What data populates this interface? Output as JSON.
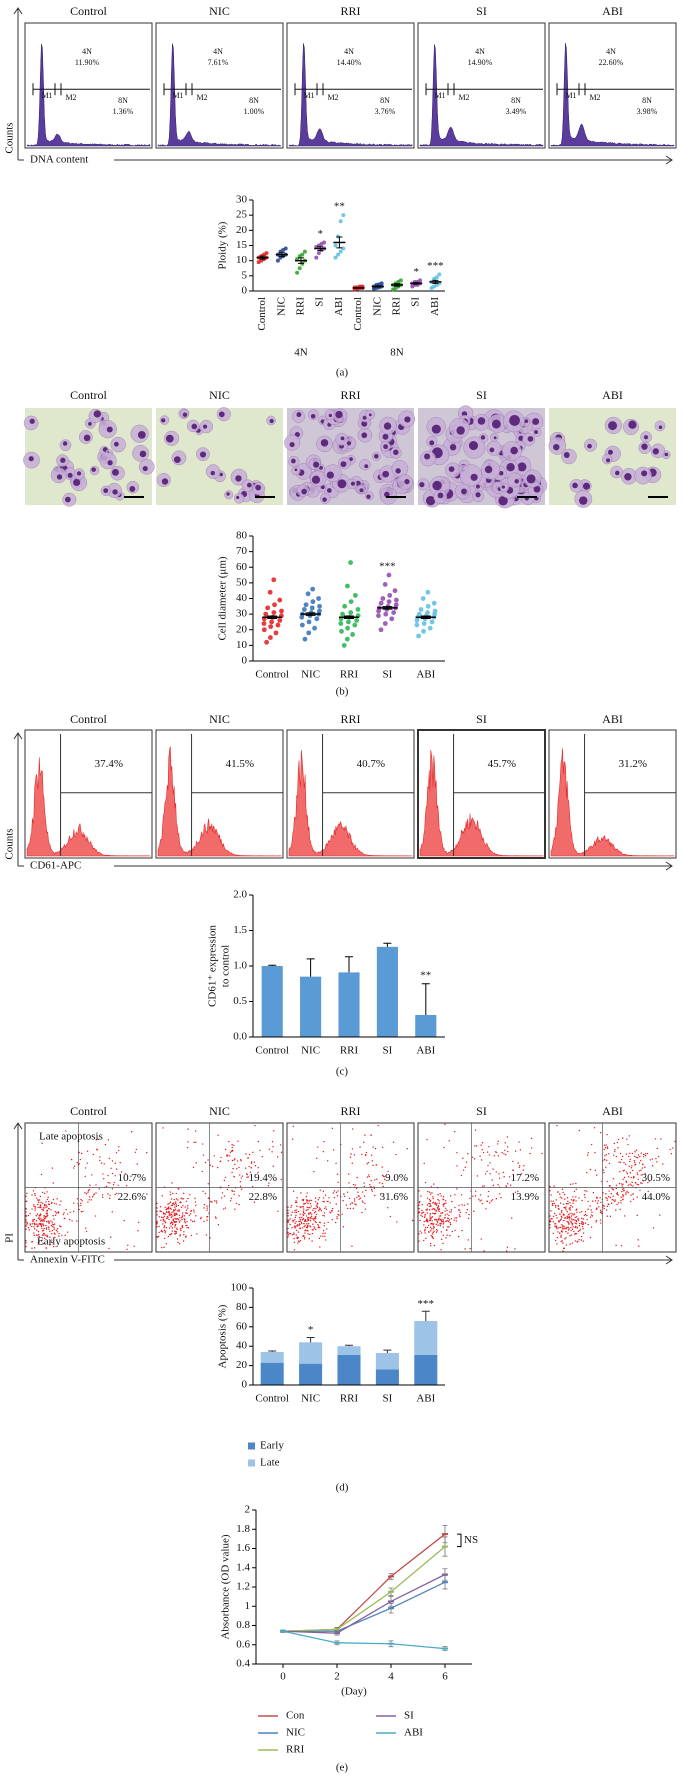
{
  "panel_labels": [
    "(a)",
    "(b)",
    "(c)",
    "(d)",
    "(e)"
  ],
  "flow_dna": {
    "y_label": "Counts",
    "x_label": "DNA content",
    "gate_1": "M1",
    "gate_2": "M2",
    "label_4n": "4N",
    "label_8n": "8N",
    "samples": [
      {
        "name": "Control",
        "p4n": "11.90%",
        "p8n": "1.36%"
      },
      {
        "name": "NIC",
        "p4n": "7.61%",
        "p8n": "1.00%"
      },
      {
        "name": "RRI",
        "p4n": "14.40%",
        "p8n": "3.76%"
      },
      {
        "name": "SI",
        "p4n": "14.90%",
        "p8n": "3.49%"
      },
      {
        "name": "ABI",
        "p4n": "22.60%",
        "p8n": "3.98%"
      }
    ]
  },
  "micrographs": {
    "samples": [
      "Control",
      "NIC",
      "RRI",
      "SI",
      "ABI"
    ]
  },
  "flow_cd61": {
    "y_label": "Counts",
    "x_label": "CD61-APC",
    "samples": [
      {
        "name": "Control",
        "value": "37.4%"
      },
      {
        "name": "NIC",
        "value": "41.5%"
      },
      {
        "name": "RRI",
        "value": "40.7%"
      },
      {
        "name": "SI",
        "value": "45.7%"
      },
      {
        "name": "ABI",
        "value": "31.2%"
      }
    ]
  },
  "flow_annexin": {
    "y_label": "PI",
    "x_label": "Annexin V-FITC",
    "late_label": "Late apoptosis",
    "early_label": "Early apoptosis",
    "samples": [
      {
        "name": "Control",
        "late": "10.7%",
        "early": "22.6%"
      },
      {
        "name": "NIC",
        "late": "19.4%",
        "early": "22.8%"
      },
      {
        "name": "RRI",
        "late": "9.0%",
        "early": "31.6%"
      },
      {
        "name": "SI",
        "late": "17.2%",
        "early": "13.9%"
      },
      {
        "name": "ABI",
        "late": "30.5%",
        "early": "44.0%"
      }
    ]
  },
  "chart_data": [
    {
      "type": "dot",
      "y_label": "Ploidy (%)",
      "categories": [
        "Control",
        "NIC",
        "RRI",
        "SI",
        "ABI",
        "Control",
        "NIC",
        "RRI",
        "SI",
        "ABI"
      ],
      "groups": [
        "4N",
        "8N"
      ],
      "colors": [
        "#e31a1c",
        "#1f3f8f",
        "#2ca02c",
        "#8e44ad",
        "#5bbde0",
        "#e31a1c",
        "#1f3f8f",
        "#2ca02c",
        "#8e44ad",
        "#5bbde0"
      ],
      "points": [
        [
          9.5,
          10,
          10.5,
          11,
          11,
          11.5,
          12,
          12.5
        ],
        [
          10,
          11,
          11.5,
          12,
          12,
          13,
          13.5,
          14
        ],
        [
          6,
          7.5,
          9,
          10,
          10.5,
          11.5,
          12,
          13
        ],
        [
          11,
          12.5,
          13.5,
          14,
          14.5,
          15,
          15.5,
          16
        ],
        [
          11,
          12,
          13,
          14,
          15,
          18,
          23,
          25
        ],
        [
          0.5,
          0.8,
          1,
          1,
          1.2,
          1.2,
          1.5,
          1.5
        ],
        [
          0.8,
          1,
          1.2,
          1.5,
          1.5,
          2,
          2.2,
          2.5
        ],
        [
          0.5,
          1,
          1.5,
          2,
          2,
          2.5,
          3,
          3.5
        ],
        [
          1.5,
          2,
          2,
          2.5,
          2.5,
          3,
          3,
          3.5
        ],
        [
          1,
          1.5,
          2,
          2.5,
          3,
          4,
          4.5,
          5.5
        ]
      ],
      "means": [
        11,
        12,
        10,
        14,
        16,
        1,
        1.5,
        2,
        2.5,
        3
      ],
      "errors": [
        0.5,
        0.6,
        0.9,
        0.6,
        1.8,
        0.1,
        0.2,
        0.4,
        0.25,
        0.5
      ],
      "significance": [
        null,
        null,
        null,
        "*",
        "**",
        null,
        null,
        null,
        "*",
        "***"
      ],
      "ylim": [
        0,
        30
      ],
      "yticks": [
        0,
        5,
        10,
        15,
        20,
        25,
        30
      ]
    },
    {
      "type": "dot",
      "y_label": "Cell diameter (μm)",
      "categories": [
        "Control",
        "NIC",
        "RRI",
        "SI",
        "ABI"
      ],
      "colors": [
        "#e31a1c",
        "#2f6fb5",
        "#22b14c",
        "#8e44ad",
        "#5bbde0"
      ],
      "points": [
        [
          12,
          15,
          18,
          20,
          22,
          23,
          24,
          25,
          26,
          27,
          28,
          29,
          30,
          31,
          32,
          34,
          36,
          39,
          44,
          52
        ],
        [
          14,
          18,
          21,
          23,
          25,
          27,
          28,
          29,
          30,
          30,
          31,
          32,
          33,
          34,
          35,
          36,
          38,
          40,
          43,
          46
        ],
        [
          10,
          14,
          17,
          19,
          21,
          23,
          24,
          25,
          26,
          27,
          28,
          29,
          30,
          31,
          33,
          35,
          38,
          42,
          48,
          63
        ],
        [
          20,
          24,
          27,
          29,
          30,
          31,
          32,
          33,
          34,
          34,
          35,
          36,
          37,
          38,
          39,
          40,
          42,
          45,
          49,
          55
        ],
        [
          16,
          19,
          21,
          23,
          24,
          25,
          26,
          27,
          28,
          28,
          29,
          30,
          30,
          31,
          32,
          33,
          35,
          37,
          40,
          44
        ]
      ],
      "means": [
        28,
        30,
        28,
        34,
        28
      ],
      "errors": [
        0.8,
        0.8,
        0.8,
        0.8,
        0.8
      ],
      "significance": [
        null,
        null,
        null,
        "***",
        null
      ],
      "ylim": [
        0,
        80
      ],
      "yticks": [
        0,
        10,
        20,
        30,
        40,
        50,
        60,
        70,
        80
      ]
    },
    {
      "type": "bar",
      "y_label": [
        "CD61⁺ expression",
        "to control"
      ],
      "categories": [
        "Control",
        "NIC",
        "RRI",
        "SI",
        "ABI"
      ],
      "values": [
        1.0,
        0.85,
        0.91,
        1.27,
        0.31
      ],
      "errors": [
        0.01,
        0.25,
        0.22,
        0.05,
        0.44
      ],
      "color": "#5b9bd5",
      "significance": [
        null,
        null,
        null,
        null,
        "**"
      ],
      "ylim": [
        0,
        2
      ],
      "yticks": [
        {
          "value": 0,
          "label": "0.0"
        },
        0.5,
        {
          "value": 1,
          "label": "1.0"
        },
        1.5,
        {
          "value": 2,
          "label": "2.0"
        }
      ]
    },
    {
      "type": "stacked_bar",
      "y_label": "Apoptosis (%)",
      "categories": [
        "Control",
        "NIC",
        "RRI",
        "SI",
        "ABI"
      ],
      "series": [
        {
          "name": "Early",
          "color": "#4a86c8",
          "values": [
            23,
            22,
            31,
            16,
            31
          ]
        },
        {
          "name": "Late",
          "color": "#9dc3e6",
          "values": [
            11,
            22,
            9,
            17,
            35
          ],
          "errors": [
            1,
            5,
            1,
            3,
            10
          ]
        }
      ],
      "significance": [
        null,
        "*",
        null,
        null,
        "***"
      ],
      "legend": "bottom",
      "ylim": [
        0,
        100
      ],
      "yticks": [
        0,
        20,
        40,
        60,
        80,
        100
      ]
    },
    {
      "type": "line",
      "x_label": "(Day)",
      "y_label": "Absorbance (OD value)",
      "x": [
        0,
        2,
        4,
        6
      ],
      "series": [
        {
          "name": "Con",
          "color": "#c0504d",
          "values": [
            0.74,
            0.76,
            1.31,
            1.75
          ],
          "errors": [
            0.01,
            0.02,
            0.03,
            0.09
          ]
        },
        {
          "name": "NIC",
          "color": "#4f81bd",
          "values": [
            0.74,
            0.74,
            0.98,
            1.25
          ],
          "errors": [
            0.01,
            0.02,
            0.05,
            0.07
          ]
        },
        {
          "name": "RRI",
          "color": "#9bbb59",
          "values": [
            0.74,
            0.76,
            1.15,
            1.62
          ],
          "errors": [
            0.01,
            0.02,
            0.04,
            0.1
          ]
        },
        {
          "name": "SI",
          "color": "#8064a2",
          "values": [
            0.74,
            0.72,
            1.05,
            1.33
          ],
          "errors": [
            0.01,
            0.02,
            0.05,
            0.06
          ]
        },
        {
          "name": "ABI",
          "color": "#4bacc6",
          "values": [
            0.74,
            0.62,
            0.61,
            0.56
          ],
          "errors": [
            0.01,
            0.02,
            0.03,
            0.02
          ]
        }
      ],
      "annotation": "NS",
      "xlim": [
        -1,
        7
      ],
      "xticks": [
        0,
        2,
        4,
        6
      ],
      "ylim": [
        0.4,
        2
      ],
      "yticks": [
        0.4,
        0.6,
        0.8,
        1,
        1.2,
        1.4,
        1.6,
        1.8,
        2
      ]
    }
  ]
}
